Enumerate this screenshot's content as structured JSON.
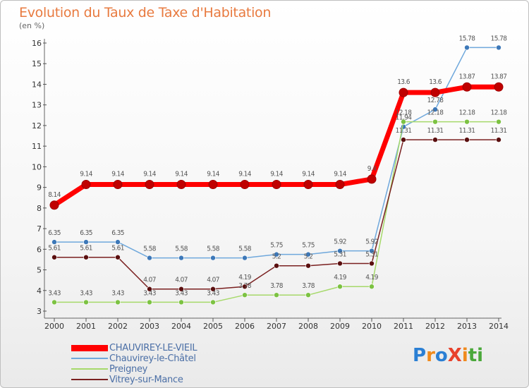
{
  "header": {
    "title": "Evolution du Taux de Taxe d'Habitation",
    "unit": "(en %)"
  },
  "logo": {
    "text": "ProXiti",
    "colors": [
      "#2a7fd4",
      "#f08a1c",
      "#2a7fd4",
      "#e8412b",
      "#f08a1c",
      "#4aa83a",
      "#4aa83a"
    ]
  },
  "chart_data": {
    "type": "line",
    "title": "Evolution du Taux de Taxe d'Habitation",
    "ylabel": "(en %)",
    "xlabel": "",
    "x": [
      "2000",
      "2001",
      "2002",
      "2003",
      "2004",
      "2005",
      "2006",
      "2007",
      "2008",
      "2009",
      "2010",
      "2011",
      "2012",
      "2013",
      "2014"
    ],
    "ylim": [
      3,
      16
    ],
    "yticks": [
      3,
      4,
      5,
      6,
      7,
      8,
      9,
      10,
      11,
      12,
      13,
      14,
      15,
      16
    ],
    "grid": false,
    "legend_position": "bottom-left",
    "series": [
      {
        "name": "CHAUVIREY-LE-VIEIL",
        "color": "#ff0000",
        "marker": "#c00000",
        "width": 7,
        "values": [
          8.14,
          9.14,
          9.14,
          9.14,
          9.14,
          9.14,
          9.14,
          9.14,
          9.14,
          9.14,
          9.4,
          13.6,
          13.6,
          13.87,
          13.87
        ],
        "labels": [
          "8.14",
          "9.14",
          "9.14",
          "9.14",
          "9.14",
          "9.14",
          "9.14",
          "9.14",
          "9.14",
          "9.14",
          "9.4",
          "13.6",
          "13.6",
          "13.87",
          "13.87"
        ]
      },
      {
        "name": "Chauvirey-le-Châtel",
        "color": "#6fa8dc",
        "marker": "#3d78b8",
        "width": 1.5,
        "values": [
          6.35,
          6.35,
          6.35,
          5.58,
          5.58,
          5.58,
          5.58,
          5.75,
          5.75,
          5.92,
          5.92,
          11.94,
          12.78,
          15.78,
          15.78
        ],
        "labels": [
          "6.35",
          "6.35",
          "6.35",
          "5.58",
          "5.58",
          "5.58",
          "5.58",
          "5.75",
          "5.75",
          "5.92",
          "5.92",
          "11.94",
          "12.78",
          "15.78",
          "15.78"
        ]
      },
      {
        "name": "Preigney",
        "color": "#a6d96a",
        "marker": "#7cc242",
        "width": 1.5,
        "values": [
          3.43,
          3.43,
          3.43,
          3.43,
          3.43,
          3.43,
          3.78,
          3.78,
          3.78,
          4.19,
          4.19,
          12.18,
          12.18,
          12.18,
          12.18
        ],
        "labels": [
          "3.43",
          "3.43",
          "3.43",
          "3.43",
          "3.43",
          "3.43",
          "3.78",
          "3.78",
          "3.78",
          "4.19",
          "4.19",
          "12.18",
          "12.18",
          "12.18",
          "12.18"
        ]
      },
      {
        "name": "Vitrey-sur-Mance",
        "color": "#7a2020",
        "marker": "#5a0f0f",
        "width": 1.5,
        "values": [
          5.61,
          5.61,
          5.61,
          4.07,
          4.07,
          4.07,
          4.19,
          5.2,
          5.2,
          5.31,
          5.31,
          11.31,
          11.31,
          11.31,
          11.31
        ],
        "labels": [
          "5.61",
          "5.61",
          "5.61",
          "4.07",
          "4.07",
          "4.07",
          "4.19",
          "5.2",
          "5.2",
          "5.31",
          "5.31",
          "11.31",
          "11.31",
          "11.31",
          "11.31"
        ]
      }
    ]
  }
}
